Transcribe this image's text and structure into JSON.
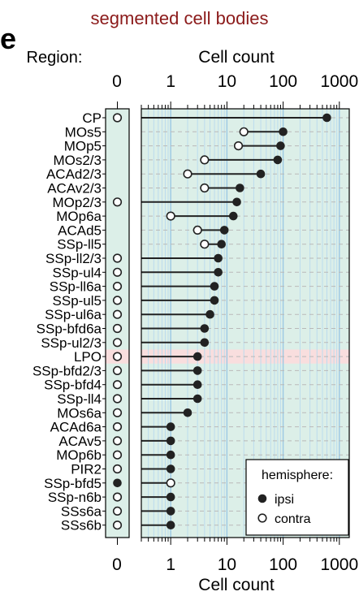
{
  "panel_letter": "e",
  "title": "segmented cell bodies",
  "region_header": "Region:",
  "top_axis_label": "Cell count",
  "bottom_axis_label": "Cell count",
  "zero_label": "0",
  "legend": {
    "title": "hemisphere:",
    "ipsi": "ipsi",
    "contra": "contra"
  },
  "colors": {
    "title": "#8b1a1a",
    "panel_bg": "#dcefe8",
    "grid_major": "#9cc8e4",
    "grid_minor": "#bcdcee",
    "highlight_row": "#f9dede",
    "marker": "#222222"
  },
  "chart_data": {
    "type": "dot",
    "title": "segmented cell bodies",
    "xlabel": "Cell count",
    "ylabel": "Region:",
    "x_scale": "log10",
    "xlim": [
      0.3,
      1500
    ],
    "x_ticks": [
      1,
      10,
      100,
      1000
    ],
    "x_tick_labels": [
      "1",
      "10",
      "100",
      "1000"
    ],
    "highlighted_region": "LPO",
    "legend_position": "bottom-right",
    "regions": [
      "CP",
      "MOs5",
      "MOp5",
      "MOs2/3",
      "ACAd2/3",
      "ACAv2/3",
      "MOp2/3",
      "MOp6a",
      "ACAd5",
      "SSp-ll5",
      "SSp-ll2/3",
      "SSp-ul4",
      "SSp-ll6a",
      "SSp-ul5",
      "SSp-ul6a",
      "SSp-bfd6a",
      "SSp-ul2/3",
      "LPO",
      "SSp-bfd2/3",
      "SSp-bfd4",
      "SSp-ll4",
      "MOs6a",
      "ACAd6a",
      "ACAv5",
      "MOp6b",
      "PIR2",
      "SSp-bfd5",
      "SSp-n6b",
      "SSs6a",
      "SSs6b"
    ],
    "series": [
      {
        "name": "ipsi",
        "values": [
          600,
          100,
          90,
          80,
          40,
          17,
          15,
          13,
          9,
          8,
          7,
          7,
          6,
          6,
          5,
          4,
          4,
          3,
          3,
          3,
          3,
          2,
          1,
          1,
          1,
          1,
          0,
          1,
          1,
          1
        ]
      },
      {
        "name": "contra",
        "values": [
          0,
          20,
          16,
          4,
          2,
          4,
          0,
          1,
          3,
          4,
          0,
          0,
          0,
          0,
          0,
          0,
          0,
          0,
          0,
          0,
          0,
          0,
          0,
          0,
          0,
          0,
          1,
          0,
          0,
          0
        ]
      }
    ]
  }
}
